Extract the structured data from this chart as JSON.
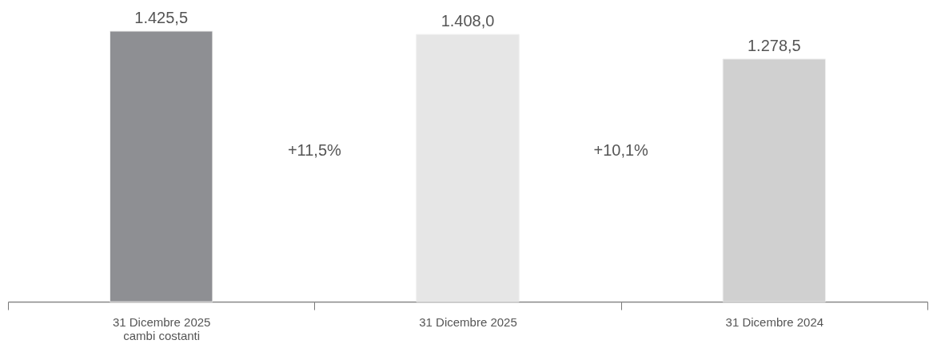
{
  "chart_data": {
    "type": "bar",
    "categories": [
      "31 Dicembre 2025\ncambi costanti",
      "31 Dicembre 2025",
      "31 Dicembre 2024"
    ],
    "values": [
      1425.5,
      1408.0,
      1278.5
    ],
    "value_labels": [
      "1.425,5",
      "1.408,0",
      "1.278,5"
    ],
    "colors": [
      "#8e8f93",
      "#e6e6e6",
      "#d0d0d0"
    ],
    "annotations": [
      "+11,5%",
      "+10,1%"
    ]
  }
}
